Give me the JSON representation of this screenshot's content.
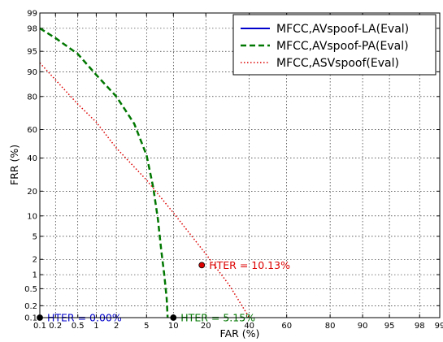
{
  "chart_data": {
    "type": "line",
    "title": "",
    "xlabel": "FAR (%)",
    "ylabel": "FRR (%)",
    "scale": "normal-deviate (DET)",
    "grid": true,
    "legend_position": "top-right",
    "xlim": [
      0.1,
      99
    ],
    "ylim": [
      0.1,
      99
    ],
    "x_ticks": [
      {
        "v": 0.1,
        "label": "0.1"
      },
      {
        "v": 0.2,
        "label": "0.2"
      },
      {
        "v": 0.5,
        "label": "0.5"
      },
      {
        "v": 1,
        "label": "1"
      },
      {
        "v": 2,
        "label": "2"
      },
      {
        "v": 5,
        "label": "5"
      },
      {
        "v": 10,
        "label": "10"
      },
      {
        "v": 20,
        "label": "20"
      },
      {
        "v": 40,
        "label": "40"
      },
      {
        "v": 60,
        "label": "60"
      },
      {
        "v": 80,
        "label": "80"
      },
      {
        "v": 90,
        "label": "90"
      },
      {
        "v": 95,
        "label": "95"
      },
      {
        "v": 98,
        "label": "98"
      },
      {
        "v": 99,
        "label": "99"
      }
    ],
    "y_ticks": [
      {
        "v": 0.1,
        "label": "0.1"
      },
      {
        "v": 0.2,
        "label": "0.2"
      },
      {
        "v": 0.5,
        "label": "0.5"
      },
      {
        "v": 1,
        "label": "1"
      },
      {
        "v": 2,
        "label": "2"
      },
      {
        "v": 5,
        "label": "5"
      },
      {
        "v": 10,
        "label": "10"
      },
      {
        "v": 20,
        "label": "20"
      },
      {
        "v": 40,
        "label": "40"
      },
      {
        "v": 60,
        "label": "60"
      },
      {
        "v": 80,
        "label": "80"
      },
      {
        "v": 90,
        "label": "90"
      },
      {
        "v": 95,
        "label": "95"
      },
      {
        "v": 98,
        "label": "98"
      },
      {
        "v": 99,
        "label": "99"
      }
    ],
    "series": [
      {
        "name": "MFCC,AVspoof-LA(Eval)",
        "color": "#0000cc",
        "style": "solid",
        "points": [
          [
            0.1,
            0.1
          ],
          [
            0.1,
            0.1
          ]
        ],
        "hter_point": [
          0.1,
          0.1
        ],
        "hter_label": "HTER = 0.00%"
      },
      {
        "name": "MFCC,AVspoof-PA(Eval)",
        "color": "#007700",
        "style": "dashed",
        "points": [
          [
            0.1,
            98
          ],
          [
            0.2,
            97
          ],
          [
            0.5,
            94.5
          ],
          [
            1,
            89
          ],
          [
            2,
            80
          ],
          [
            3.5,
            64
          ],
          [
            5,
            42
          ],
          [
            6,
            22
          ],
          [
            6.8,
            9
          ],
          [
            7.4,
            3
          ],
          [
            8,
            1
          ],
          [
            8.5,
            0.3
          ],
          [
            8.7,
            0.1
          ]
        ],
        "hter_point": [
          10,
          0.1
        ],
        "hter_label": "HTER = 5.15%"
      },
      {
        "name": "MFCC,ASVspoof(Eval)",
        "color": "#dd0000",
        "style": "dotted",
        "points": [
          [
            0.1,
            92.5
          ],
          [
            0.5,
            76
          ],
          [
            1,
            65
          ],
          [
            2,
            47
          ],
          [
            5,
            26
          ],
          [
            10,
            11
          ],
          [
            20,
            2.5
          ],
          [
            30,
            0.6
          ],
          [
            40,
            0.1
          ]
        ],
        "hter_point": [
          18.5,
          1.55
        ],
        "hter_label": "HTER = 10.13%"
      }
    ]
  }
}
